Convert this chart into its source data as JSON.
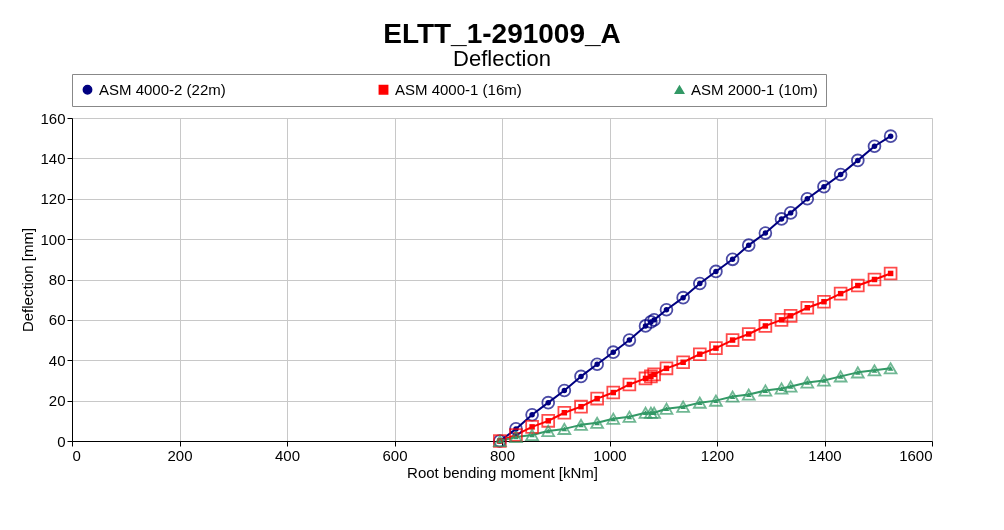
{
  "chart_data": {
    "type": "line",
    "title": "ELTT_1-291009_A",
    "subtitle": "Deflection",
    "xlabel": "Root bending moment [kNm]",
    "ylabel": "Deflection [mm]",
    "x": [
      796,
      826,
      856,
      886,
      916,
      947,
      977,
      1007,
      1037,
      1067,
      1077,
      1083,
      1106,
      1137,
      1168,
      1198,
      1229,
      1259,
      1290,
      1320,
      1337,
      1368,
      1399,
      1430,
      1462,
      1493,
      1523
    ],
    "series": [
      {
        "name": "ASM 4000-2 (22m)",
        "color": "#000080",
        "marker": "circle",
        "values": [
          0,
          6,
          13,
          19,
          25,
          32,
          38,
          44,
          50,
          57,
          59,
          60,
          65,
          71,
          78,
          84,
          90,
          97,
          103,
          110,
          113,
          120,
          126,
          132,
          139,
          146,
          151
        ]
      },
      {
        "name": "ASM 4000-1 (16m)",
        "color": "#ff0000",
        "marker": "square",
        "values": [
          0,
          3,
          7,
          10,
          14,
          17,
          21,
          24,
          28,
          31,
          32,
          33,
          36,
          39,
          43,
          46,
          50,
          53,
          57,
          60,
          62,
          66,
          69,
          73,
          77,
          80,
          83
        ]
      },
      {
        "name": "ASM 2000-1 (10m)",
        "color": "#339966",
        "marker": "triangle",
        "values": [
          0,
          2,
          3,
          5,
          6,
          8,
          9,
          11,
          12,
          14,
          14,
          14,
          16,
          17,
          19,
          20,
          22,
          23,
          25,
          26,
          27,
          29,
          30,
          32,
          34,
          35,
          36
        ]
      }
    ],
    "xlim": [
      0,
      1600
    ],
    "xticks": [
      0,
      200,
      400,
      600,
      800,
      1000,
      1200,
      1400,
      1600
    ],
    "ylim": [
      0,
      160
    ],
    "yticks": [
      0,
      20,
      40,
      60,
      80,
      100,
      120,
      140,
      160
    ],
    "grid": true,
    "legend": "top",
    "line_style": "solid"
  }
}
